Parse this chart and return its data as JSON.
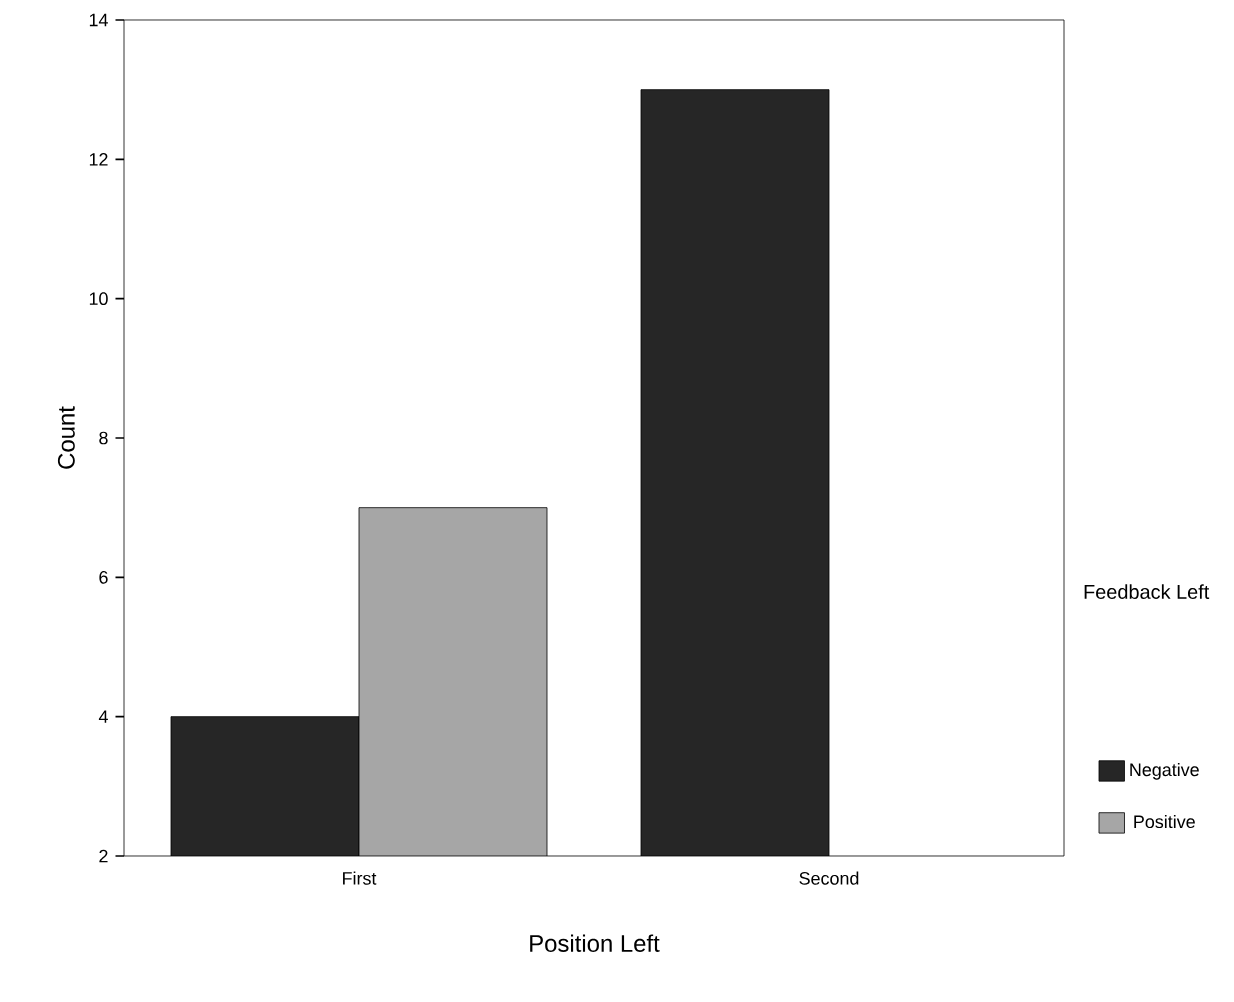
{
  "chart_data": {
    "type": "bar",
    "xlabel": "Position Left",
    "ylabel": "Count",
    "legend_title": "Feedback Left",
    "categories": [
      "First",
      "Second"
    ],
    "series": [
      {
        "name": "Negative",
        "color": "#262626",
        "values": [
          4,
          13
        ]
      },
      {
        "name": "Positive",
        "color": "#a6a6a6",
        "values": [
          7,
          null
        ]
      }
    ],
    "ylim": [
      2,
      14
    ],
    "yticks": [
      2,
      4,
      6,
      8,
      10,
      12,
      14
    ],
    "legend": "right"
  }
}
